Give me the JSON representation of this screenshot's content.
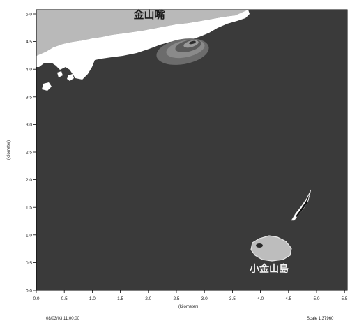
{
  "map": {
    "place_labels": {
      "bay": "金山嘴",
      "island": "小金山島"
    },
    "x_axis": {
      "label": "(kilometer)",
      "ticks": [
        "0.0",
        "0.5",
        "1.0",
        "1.5",
        "2.0",
        "2.5",
        "3.0",
        "3.5",
        "4.0",
        "4.5",
        "5.0",
        "5.5"
      ]
    },
    "y_axis": {
      "label": "(kilometer)",
      "ticks": [
        "0.0",
        "0.5",
        "1.0",
        "1.5",
        "2.0",
        "2.5",
        "3.0",
        "3.5",
        "4.0",
        "4.5",
        "5.0"
      ]
    },
    "timestamp": "08/03/03 11:00:00",
    "scale_text": "Scale 1:37960",
    "colors": {
      "sea": "#3a3a3a",
      "land": "#b8b8b8",
      "shoreline": "#ffffff",
      "island": "#bcbcbc",
      "frame": "#000000"
    }
  }
}
